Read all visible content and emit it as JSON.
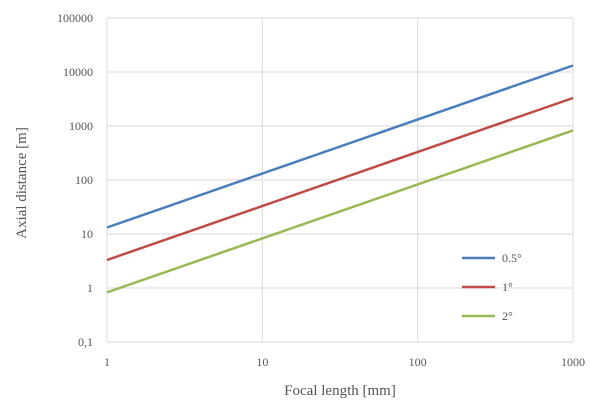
{
  "chart_data": {
    "type": "line",
    "xlabel": "Focal length [mm]",
    "ylabel": "Axial distance [m]",
    "x_scale": "log",
    "y_scale": "log",
    "xlim": [
      1,
      1000
    ],
    "ylim": [
      0.1,
      100000
    ],
    "x_ticks": [
      "1",
      "10",
      "100",
      "1000"
    ],
    "y_ticks": [
      "0,1",
      "1",
      "10",
      "100",
      "1000",
      "10000",
      "100000"
    ],
    "grid": true,
    "legend_position": "bottom-right",
    "series": [
      {
        "name": "0.5°",
        "color": "#4a7ebb",
        "x": [
          1,
          1000
        ],
        "y": [
          13.2,
          13200
        ]
      },
      {
        "name": "1°",
        "color": "#be4b48",
        "x": [
          1,
          1000
        ],
        "y": [
          3.3,
          3300
        ]
      },
      {
        "name": "2°",
        "color": "#98b954",
        "x": [
          1,
          1000
        ],
        "y": [
          0.83,
          830
        ]
      }
    ]
  }
}
